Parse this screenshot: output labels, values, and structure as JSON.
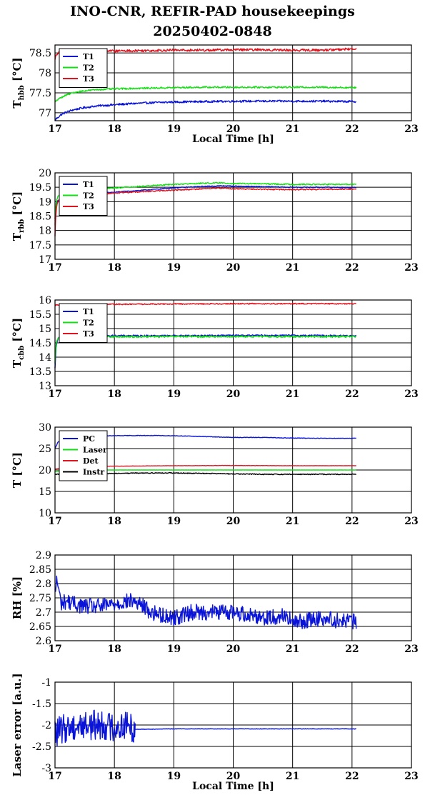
{
  "title": {
    "line1": "INO-CNR, REFIR-PAD housekeepings",
    "line2": "20250402-0848"
  },
  "colors": {
    "blue": "#0a14d8",
    "green": "#10e010",
    "red": "#e0141e",
    "black": "#000000"
  },
  "chart_data": [
    {
      "type": "line",
      "ylabel": "T",
      "ylabel_sub": "hbb",
      "ylabel_unit": "[°C]",
      "xlabel": "Local Time [h]",
      "xlim": [
        17,
        23
      ],
      "ylim": [
        76.8,
        78.7
      ],
      "yticks": [
        77,
        77.5,
        78,
        78.5
      ],
      "xticks": [
        17,
        18,
        19,
        20,
        21,
        22,
        23
      ],
      "grid": true,
      "legend_position": "top-left",
      "series": [
        {
          "name": "T1",
          "color": "blue",
          "x": [
            17.0,
            17.1,
            17.2,
            17.3,
            17.4,
            17.5,
            17.7,
            18.0,
            18.3,
            18.6,
            19.0,
            19.5,
            20.0,
            20.5,
            21.0,
            21.5,
            22.0,
            22.07
          ],
          "y": [
            76.82,
            76.95,
            77.02,
            77.07,
            77.1,
            77.13,
            77.17,
            77.2,
            77.23,
            77.25,
            77.27,
            77.28,
            77.29,
            77.29,
            77.29,
            77.29,
            77.28,
            77.28
          ],
          "noise": 0.025
        },
        {
          "name": "T2",
          "color": "green",
          "x": [
            17.0,
            17.1,
            17.2,
            17.3,
            17.4,
            17.5,
            17.7,
            18.0,
            18.3,
            18.6,
            19.0,
            19.5,
            20.0,
            20.5,
            21.0,
            21.5,
            22.0,
            22.07
          ],
          "y": [
            77.28,
            77.38,
            77.45,
            77.5,
            77.53,
            77.55,
            77.58,
            77.6,
            77.61,
            77.62,
            77.63,
            77.64,
            77.64,
            77.64,
            77.64,
            77.64,
            77.63,
            77.63
          ],
          "noise": 0.02
        },
        {
          "name": "T3",
          "color": "red",
          "x": [
            17.0,
            17.02,
            17.05,
            17.1,
            17.3,
            17.5,
            18.0,
            18.5,
            19.0,
            19.5,
            20.0,
            20.5,
            21.0,
            21.5,
            22.0,
            22.07
          ],
          "y": [
            78.35,
            78.45,
            78.5,
            78.52,
            78.53,
            78.54,
            78.55,
            78.56,
            78.57,
            78.57,
            78.58,
            78.58,
            78.57,
            78.57,
            78.6,
            78.62
          ],
          "noise": 0.03
        }
      ]
    },
    {
      "type": "line",
      "ylabel": "T",
      "ylabel_sub": "rbb",
      "ylabel_unit": "[°C]",
      "xlabel": "",
      "xlim": [
        17,
        23
      ],
      "ylim": [
        17,
        20
      ],
      "yticks": [
        17,
        17.5,
        18,
        18.5,
        19,
        19.5,
        20
      ],
      "xticks": [
        17,
        18,
        19,
        20,
        21,
        22,
        23
      ],
      "grid": true,
      "legend_position": "top-left",
      "series": [
        {
          "name": "T1",
          "color": "blue",
          "x": [
            17.0,
            17.02,
            17.05,
            17.1,
            17.3,
            17.6,
            18.0,
            18.5,
            19.0,
            19.5,
            19.8,
            20.0,
            20.5,
            21.0,
            21.5,
            22.0,
            22.07
          ],
          "y": [
            18.4,
            18.9,
            19.05,
            19.1,
            19.2,
            19.27,
            19.33,
            19.4,
            19.48,
            19.53,
            19.55,
            19.54,
            19.52,
            19.5,
            19.5,
            19.49,
            19.49
          ],
          "noise": 0.015
        },
        {
          "name": "T2",
          "color": "green",
          "x": [
            17.0,
            17.02,
            17.05,
            17.1,
            17.3,
            17.6,
            18.0,
            18.5,
            19.0,
            19.5,
            19.8,
            20.0,
            20.5,
            21.0,
            21.5,
            22.0,
            22.07
          ],
          "y": [
            18.2,
            19.0,
            19.2,
            19.28,
            19.35,
            19.42,
            19.48,
            19.54,
            19.6,
            19.64,
            19.65,
            19.63,
            19.62,
            19.6,
            19.6,
            19.6,
            19.6
          ],
          "noise": 0.02
        },
        {
          "name": "T3",
          "color": "red",
          "x": [
            17.0,
            17.01,
            17.03,
            17.06,
            17.1,
            17.3,
            17.6,
            18.0,
            18.5,
            19.0,
            19.5,
            19.8,
            20.0,
            20.5,
            21.0,
            21.5,
            22.0,
            22.07
          ],
          "y": [
            17.8,
            18.4,
            18.9,
            19.05,
            19.12,
            19.18,
            19.25,
            19.3,
            19.35,
            19.4,
            19.45,
            19.47,
            19.45,
            19.43,
            19.42,
            19.43,
            19.44,
            19.44
          ],
          "noise": 0.02
        }
      ]
    },
    {
      "type": "line",
      "ylabel": "T",
      "ylabel_sub": "cbb",
      "ylabel_unit": "[°C]",
      "xlabel": "",
      "xlim": [
        17,
        23
      ],
      "ylim": [
        13,
        16
      ],
      "yticks": [
        13,
        13.5,
        14,
        14.5,
        15,
        15.5,
        16
      ],
      "xticks": [
        17,
        18,
        19,
        20,
        21,
        22,
        23
      ],
      "grid": true,
      "legend_position": "top-left",
      "series": [
        {
          "name": "T1",
          "color": "blue",
          "x": [
            17.0,
            17.01,
            17.02,
            17.04,
            17.08,
            17.15,
            17.5,
            18.0,
            19.0,
            20.0,
            21.0,
            22.0,
            22.07
          ],
          "y": [
            13.6,
            14.0,
            14.4,
            14.6,
            14.7,
            14.74,
            14.75,
            14.75,
            14.75,
            14.76,
            14.76,
            14.75,
            14.75
          ],
          "noise": 0.025
        },
        {
          "name": "T2",
          "color": "green",
          "x": [
            17.0,
            17.01,
            17.02,
            17.04,
            17.08,
            17.15,
            17.5,
            18.0,
            19.0,
            20.0,
            21.0,
            22.0,
            22.07
          ],
          "y": [
            13.8,
            14.2,
            14.5,
            14.62,
            14.68,
            14.7,
            14.71,
            14.71,
            14.72,
            14.72,
            14.72,
            14.72,
            14.72
          ],
          "noise": 0.03
        },
        {
          "name": "T3",
          "color": "red",
          "x": [
            17.0,
            17.5,
            18.0,
            19.0,
            20.0,
            21.0,
            22.0,
            22.07
          ],
          "y": [
            15.82,
            15.84,
            15.85,
            15.86,
            15.87,
            15.87,
            15.87,
            15.87
          ],
          "noise": 0.02
        }
      ]
    },
    {
      "type": "line",
      "ylabel": "T",
      "ylabel_sub": "",
      "ylabel_unit": "[°C]",
      "xlabel": "",
      "xlim": [
        17,
        23
      ],
      "ylim": [
        10,
        30
      ],
      "yticks": [
        10,
        15,
        20,
        25,
        30
      ],
      "xticks": [
        17,
        18,
        19,
        20,
        21,
        22,
        23
      ],
      "grid": true,
      "legend_position": "top-left",
      "series": [
        {
          "name": "PC",
          "color": "blue",
          "x": [
            17.0,
            17.05,
            17.2,
            17.5,
            18.0,
            18.5,
            19.0,
            19.5,
            20.0,
            20.5,
            21.0,
            21.5,
            22.0,
            22.07
          ],
          "y": [
            25.0,
            26.5,
            27.5,
            27.9,
            28.0,
            28.05,
            28.0,
            27.8,
            27.6,
            27.6,
            27.45,
            27.4,
            27.4,
            27.4
          ],
          "noise": 0.06
        },
        {
          "name": "Laser",
          "color": "green",
          "x": [
            17.0,
            17.2,
            17.5,
            18.0,
            19.0,
            20.0,
            21.0,
            22.0,
            22.07
          ],
          "y": [
            19.6,
            19.9,
            20.0,
            20.0,
            20.0,
            20.0,
            20.0,
            20.0,
            20.0
          ],
          "noise": 0.02
        },
        {
          "name": "Det",
          "color": "red",
          "x": [
            17.0,
            17.2,
            17.5,
            18.0,
            19.0,
            20.0,
            21.0,
            22.0,
            22.07
          ],
          "y": [
            20.2,
            20.6,
            20.8,
            20.9,
            21.0,
            21.05,
            21.0,
            21.0,
            21.0
          ],
          "noise": 0.03
        },
        {
          "name": "Instr",
          "color": "black",
          "x": [
            17.0,
            17.5,
            18.0,
            18.5,
            19.0,
            19.5,
            20.0,
            20.5,
            21.0,
            21.5,
            22.0,
            22.07
          ],
          "y": [
            19.0,
            19.1,
            19.2,
            19.3,
            19.3,
            19.2,
            19.1,
            19.0,
            19.0,
            19.0,
            19.0,
            19.0
          ],
          "noise": 0.1
        }
      ]
    },
    {
      "type": "line",
      "ylabel": "RH [%]",
      "ylabel_sub": "",
      "ylabel_unit": "",
      "xlabel": "",
      "xlim": [
        17,
        23
      ],
      "ylim": [
        2.6,
        2.9
      ],
      "yticks": [
        2.6,
        2.65,
        2.7,
        2.75,
        2.8,
        2.85,
        2.9
      ],
      "xticks": [
        17,
        18,
        19,
        20,
        21,
        22,
        23
      ],
      "grid": true,
      "legend_position": "",
      "series": [
        {
          "name": "",
          "color": "blue",
          "x": [
            17.0,
            17.03,
            17.06,
            17.1,
            17.2,
            17.3,
            17.5,
            17.8,
            18.0,
            18.3,
            18.5,
            18.6,
            18.8,
            19.0,
            19.3,
            19.6,
            20.0,
            20.3,
            20.6,
            20.9,
            21.0,
            21.2,
            21.5,
            21.8,
            22.0,
            22.07
          ],
          "y": [
            2.76,
            2.82,
            2.78,
            2.73,
            2.74,
            2.73,
            2.72,
            2.72,
            2.73,
            2.74,
            2.72,
            2.7,
            2.69,
            2.68,
            2.7,
            2.7,
            2.7,
            2.69,
            2.68,
            2.69,
            2.66,
            2.67,
            2.68,
            2.67,
            2.67,
            2.66
          ],
          "noise": 0.028
        }
      ]
    },
    {
      "type": "line",
      "ylabel": "Laser error [a.u.]",
      "ylabel_sub": "",
      "ylabel_unit": "",
      "xlabel": "Local Time [h]",
      "xlim": [
        17,
        23
      ],
      "ylim": [
        -3,
        -1
      ],
      "yticks": [
        -3,
        -2.5,
        -2,
        -1.5,
        -1
      ],
      "xticks": [
        17,
        18,
        19,
        20,
        21,
        22,
        23
      ],
      "grid": true,
      "legend_position": "",
      "series": [
        {
          "name": "",
          "color": "blue",
          "x": [
            17.0,
            17.2,
            17.5,
            17.8,
            18.0,
            18.2,
            18.35
          ],
          "y": [
            -2.2,
            -2.05,
            -2.0,
            -2.0,
            -2.05,
            -2.0,
            -2.1
          ],
          "noise": 0.35
        },
        {
          "name": "",
          "color": "blue",
          "x": [
            18.35,
            19.0,
            20.0,
            21.0,
            22.0,
            22.07
          ],
          "y": [
            -2.1,
            -2.09,
            -2.09,
            -2.09,
            -2.09,
            -2.09
          ],
          "noise": 0.006
        }
      ]
    }
  ]
}
